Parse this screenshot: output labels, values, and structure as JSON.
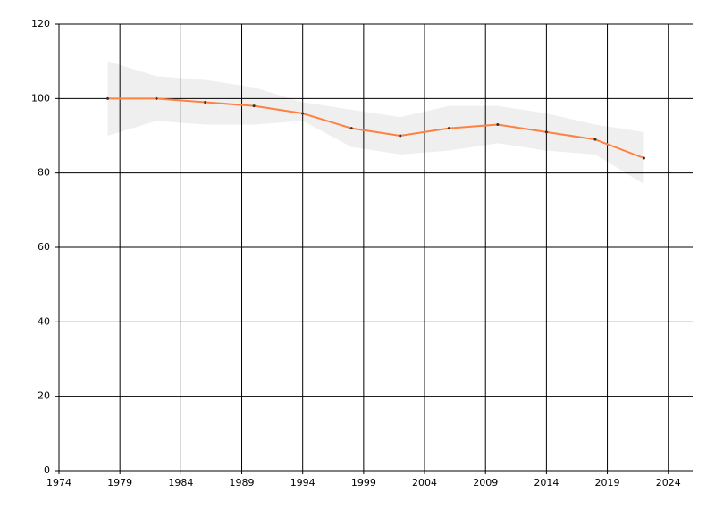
{
  "chart_data": {
    "type": "line",
    "x": [
      1978,
      1982,
      1986,
      1990,
      1994,
      1998,
      2002,
      2006,
      2010,
      2014,
      2018,
      2022
    ],
    "values": [
      100,
      100,
      99,
      98,
      96,
      92,
      90,
      92,
      93,
      91,
      89,
      84
    ],
    "upper": [
      110,
      106,
      105,
      103,
      99,
      97,
      95,
      98,
      98,
      96,
      93,
      91
    ],
    "lower": [
      90,
      94,
      93,
      93,
      94,
      87,
      85,
      86,
      88,
      86,
      85,
      77
    ],
    "color": "#ff8040",
    "band_color": "#efefef",
    "point_color": "#333333",
    "xlim": [
      1974,
      2026
    ],
    "xticks": [
      1974,
      1979,
      1984,
      1989,
      1994,
      1999,
      2004,
      2009,
      2014,
      2019,
      2024
    ],
    "ylim": [
      0,
      120
    ],
    "yticks": [
      0,
      20,
      40,
      60,
      80,
      100,
      120
    ],
    "grid": true
  }
}
